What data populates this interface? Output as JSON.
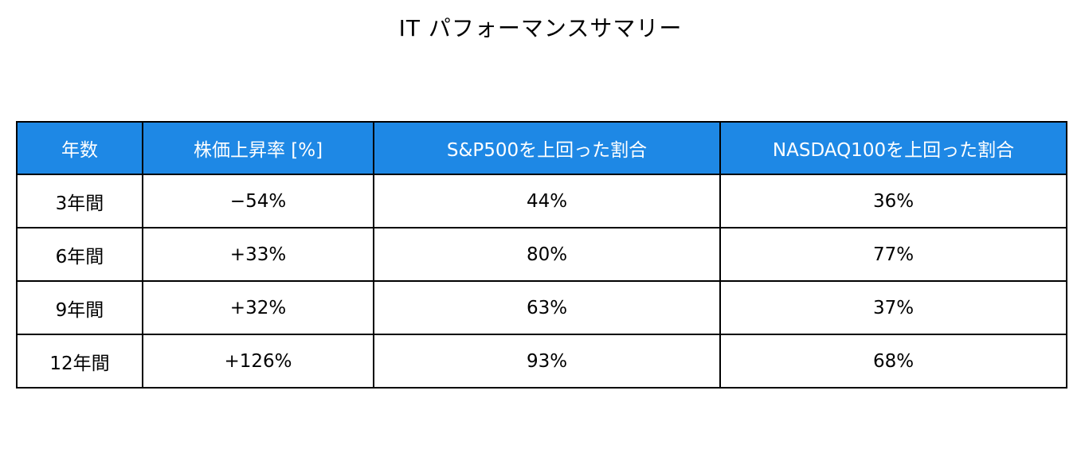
{
  "title": "IT パフォーマンスサマリー",
  "table": {
    "headers": [
      "年数",
      "株価上昇率 [%]",
      "S&P500を上回った割合",
      "NASDAQ100を上回った割合"
    ],
    "rows": [
      [
        "3年間",
        "−54%",
        "44%",
        "36%"
      ],
      [
        "6年間",
        "+33%",
        "80%",
        "77%"
      ],
      [
        "9年間",
        "+32%",
        "63%",
        "37%"
      ],
      [
        "12年間",
        "+126%",
        "93%",
        "68%"
      ]
    ]
  }
}
